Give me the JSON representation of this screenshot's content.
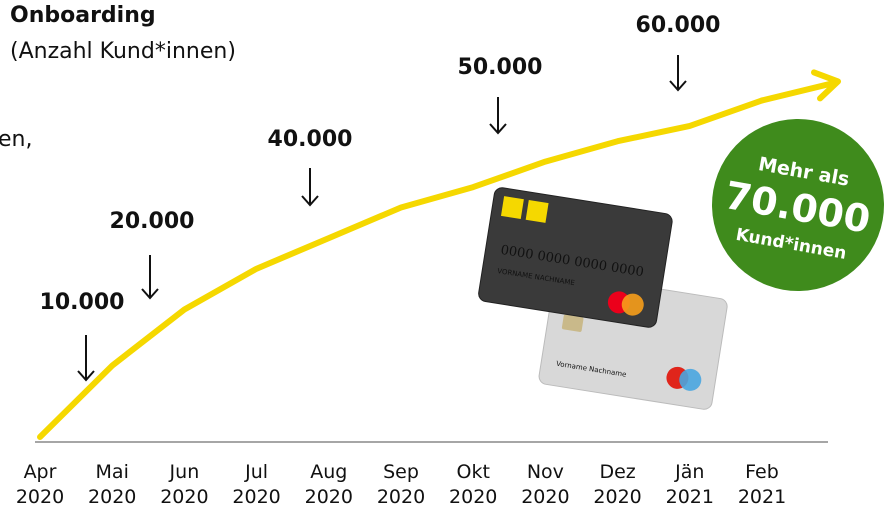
{
  "chart_data": {
    "type": "line",
    "title": "Onboarding",
    "subtitle": "(Anzahl Kund*innen)",
    "side_text": "en,",
    "categories": [
      "Apr 2020",
      "Mai 2020",
      "Jun 2020",
      "Jul 2020",
      "Aug 2020",
      "Sep 2020",
      "Okt 2020",
      "Nov 2020",
      "Dez 2020",
      "Jän 2021",
      "Feb 2021"
    ],
    "series": [
      {
        "color": "#f5d800",
        "values": [
          0,
          14000,
          25000,
          33000,
          39000,
          45000,
          49000,
          54000,
          58000,
          61000,
          66000
        ]
      }
    ],
    "ylim": [
      0,
      80000
    ],
    "annotations": [
      "10.000",
      "20.000",
      "40.000",
      "50.000",
      "60.000"
    ],
    "badge": {
      "line1": "Mehr als",
      "line2": "70.000",
      "line3": "Kund*innen",
      "color": "#3f8b1c"
    },
    "cards": {
      "number": "0000 0000 0000 0000",
      "name": "VORNAME NACHNAME",
      "name2": "Vorname Nachname"
    }
  }
}
